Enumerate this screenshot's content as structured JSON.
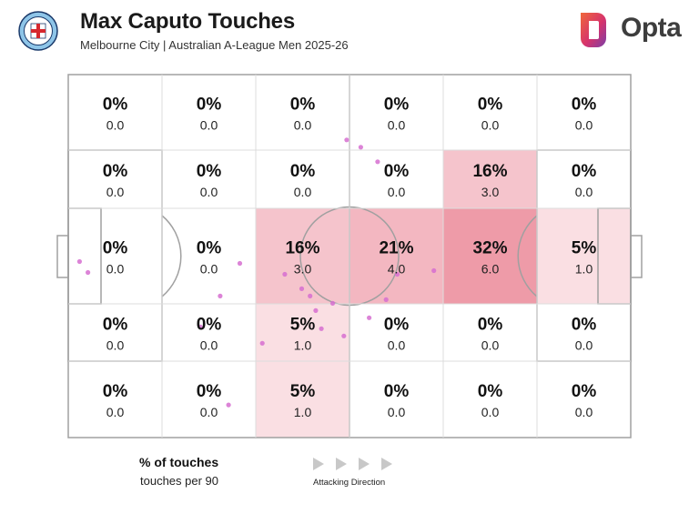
{
  "header": {
    "title": "Max Caputo Touches",
    "subtitle": "Melbourne City | Australian A-League Men 2025-26",
    "brand": "Opta"
  },
  "legend": {
    "main": "% of touches",
    "sub": "touches per 90",
    "direction": "Attacking Direction"
  },
  "colors": {
    "accent": "#e8788a",
    "pitch_line": "#a0a0a0",
    "dot": "#d66fd0",
    "opta_orange": "#f0673a",
    "opta_purple": "#7a3fa8"
  },
  "chart_data": {
    "type": "heatmap",
    "rows": 5,
    "cols": 6,
    "cells": [
      [
        {
          "pct": "0%",
          "val": "0.0",
          "p": 0
        },
        {
          "pct": "0%",
          "val": "0.0",
          "p": 0
        },
        {
          "pct": "0%",
          "val": "0.0",
          "p": 0
        },
        {
          "pct": "0%",
          "val": "0.0",
          "p": 0
        },
        {
          "pct": "0%",
          "val": "0.0",
          "p": 0
        },
        {
          "pct": "0%",
          "val": "0.0",
          "p": 0
        }
      ],
      [
        {
          "pct": "0%",
          "val": "0.0",
          "p": 0
        },
        {
          "pct": "0%",
          "val": "0.0",
          "p": 0
        },
        {
          "pct": "0%",
          "val": "0.0",
          "p": 0
        },
        {
          "pct": "0%",
          "val": "0.0",
          "p": 0
        },
        {
          "pct": "16%",
          "val": "3.0",
          "p": 16
        },
        {
          "pct": "0%",
          "val": "0.0",
          "p": 0
        }
      ],
      [
        {
          "pct": "0%",
          "val": "0.0",
          "p": 0
        },
        {
          "pct": "0%",
          "val": "0.0",
          "p": 0
        },
        {
          "pct": "16%",
          "val": "3.0",
          "p": 16
        },
        {
          "pct": "21%",
          "val": "4.0",
          "p": 21
        },
        {
          "pct": "32%",
          "val": "6.0",
          "p": 32
        },
        {
          "pct": "5%",
          "val": "1.0",
          "p": 5
        }
      ],
      [
        {
          "pct": "0%",
          "val": "0.0",
          "p": 0
        },
        {
          "pct": "0%",
          "val": "0.0",
          "p": 0
        },
        {
          "pct": "5%",
          "val": "1.0",
          "p": 5
        },
        {
          "pct": "0%",
          "val": "0.0",
          "p": 0
        },
        {
          "pct": "0%",
          "val": "0.0",
          "p": 0
        },
        {
          "pct": "0%",
          "val": "0.0",
          "p": 0
        }
      ],
      [
        {
          "pct": "0%",
          "val": "0.0",
          "p": 0
        },
        {
          "pct": "0%",
          "val": "0.0",
          "p": 0
        },
        {
          "pct": "5%",
          "val": "1.0",
          "p": 5
        },
        {
          "pct": "0%",
          "val": "0.0",
          "p": 0
        },
        {
          "pct": "0%",
          "val": "0.0",
          "p": 0
        },
        {
          "pct": "0%",
          "val": "0.0",
          "p": 0
        }
      ]
    ],
    "touches": [
      [
        0.495,
        0.18
      ],
      [
        0.52,
        0.2
      ],
      [
        0.55,
        0.24
      ],
      [
        0.02,
        0.515
      ],
      [
        0.035,
        0.545
      ],
      [
        0.305,
        0.52
      ],
      [
        0.27,
        0.61
      ],
      [
        0.235,
        0.695
      ],
      [
        0.385,
        0.55
      ],
      [
        0.415,
        0.59
      ],
      [
        0.44,
        0.65
      ],
      [
        0.43,
        0.61
      ],
      [
        0.47,
        0.63
      ],
      [
        0.45,
        0.7
      ],
      [
        0.49,
        0.72
      ],
      [
        0.535,
        0.67
      ],
      [
        0.565,
        0.62
      ],
      [
        0.585,
        0.55
      ],
      [
        0.65,
        0.54
      ],
      [
        0.345,
        0.74
      ],
      [
        0.285,
        0.91
      ]
    ]
  }
}
